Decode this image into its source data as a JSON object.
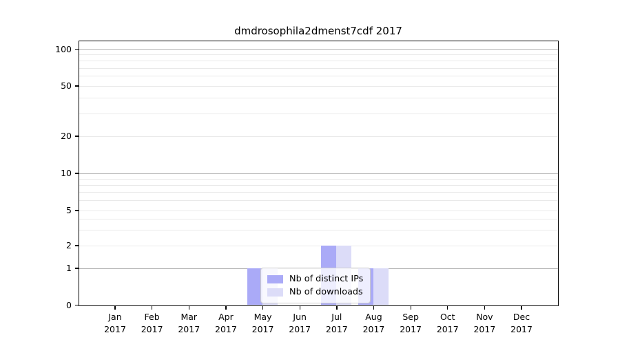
{
  "figure": {
    "title": "dmdrosophila2dmenst7cdf 2017"
  },
  "chart_data": {
    "type": "bar",
    "title": "dmdrosophila2dmenst7cdf 2017",
    "categories": [
      "Jan 2017",
      "Feb 2017",
      "Mar 2017",
      "Apr 2017",
      "May 2017",
      "Jun 2017",
      "Jul 2017",
      "Aug 2017",
      "Sep 2017",
      "Oct 2017",
      "Nov 2017",
      "Dec 2017"
    ],
    "x_tick_month_labels": [
      "Jan",
      "Feb",
      "Mar",
      "Apr",
      "May",
      "Jun",
      "Jul",
      "Aug",
      "Sep",
      "Oct",
      "Nov",
      "Dec"
    ],
    "x_tick_year_label": "2017",
    "series": [
      {
        "name": "Nb of distinct IPs",
        "color": "#aaaaf7",
        "values": [
          0,
          0,
          0,
          0,
          1,
          0,
          2,
          1,
          0,
          0,
          0,
          0
        ]
      },
      {
        "name": "Nb of downloads",
        "color": "#dcdcf8",
        "values": [
          0,
          0,
          0,
          0,
          1,
          0,
          2,
          1,
          0,
          0,
          0,
          0
        ]
      }
    ],
    "xlabel": "",
    "ylabel": "",
    "y_axis": {
      "scale": "symlog",
      "major_tick_labels": [
        0,
        1,
        2,
        5,
        10,
        20,
        50,
        100
      ],
      "minor_tick_values": [
        3,
        4,
        6,
        7,
        8,
        9,
        30,
        40,
        60,
        70,
        80,
        90
      ],
      "emphasized_grid_values": [
        1,
        10,
        100
      ],
      "ylim": [
        0,
        115
      ]
    },
    "grid": true,
    "legend": {
      "visible": true,
      "position": "lower-center-left-inside",
      "entries": [
        "Nb of distinct IPs",
        "Nb of downloads"
      ]
    },
    "colors": {
      "background": "#ffffff",
      "spine": "#000000",
      "major_grid": "#b3b3b3",
      "minor_grid": "#e9e9e9",
      "bar_distinct_ips": "#aaaaf7",
      "bar_downloads": "#dcdcf8"
    }
  }
}
